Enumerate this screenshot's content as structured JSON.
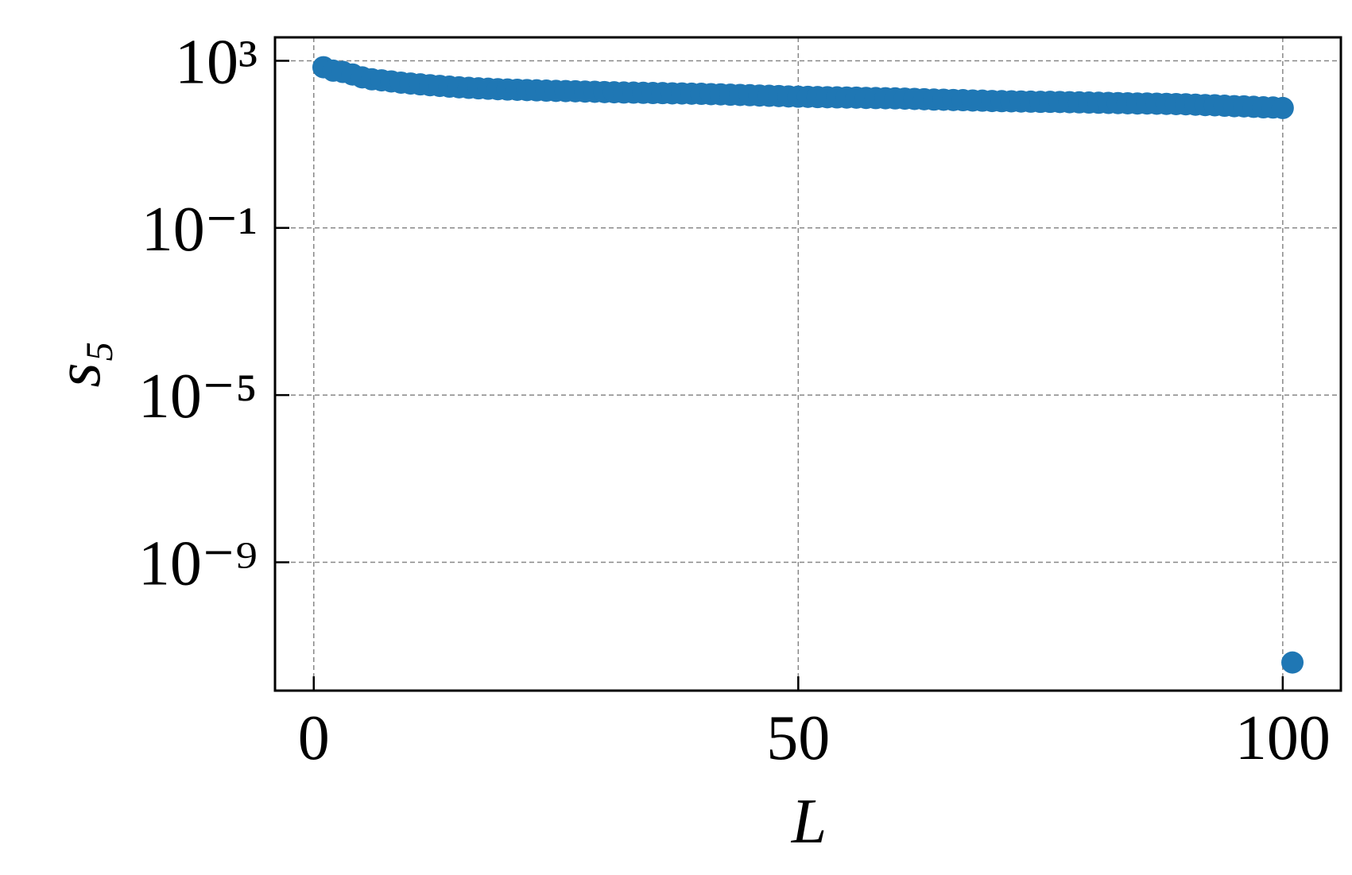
{
  "chart_data": {
    "type": "scatter",
    "x_label": "L",
    "y_label": "s₅",
    "x": [
      1,
      2,
      3,
      4,
      5,
      6,
      7,
      8,
      9,
      10,
      11,
      12,
      13,
      14,
      15,
      16,
      17,
      18,
      19,
      20,
      21,
      22,
      23,
      24,
      25,
      26,
      27,
      28,
      29,
      30,
      31,
      32,
      33,
      34,
      35,
      36,
      37,
      38,
      39,
      40,
      41,
      42,
      43,
      44,
      45,
      46,
      47,
      48,
      49,
      50,
      51,
      52,
      53,
      54,
      55,
      56,
      57,
      58,
      59,
      60,
      61,
      62,
      63,
      64,
      65,
      66,
      67,
      68,
      69,
      70,
      71,
      72,
      73,
      74,
      75,
      76,
      77,
      78,
      79,
      80,
      81,
      82,
      83,
      84,
      85,
      86,
      87,
      88,
      89,
      90,
      91,
      92,
      93,
      94,
      95,
      96,
      97,
      98,
      99,
      100,
      101
    ],
    "values": [
      700,
      580,
      540,
      470,
      400,
      360,
      340,
      320,
      300,
      285,
      272,
      260,
      250,
      240,
      232,
      225,
      219,
      214,
      209,
      205,
      202,
      199,
      196,
      193,
      190,
      188,
      186,
      183,
      181,
      178,
      176,
      174,
      173,
      171,
      169,
      168,
      166,
      165,
      163,
      162,
      159,
      157,
      154,
      152,
      150,
      147,
      145,
      143,
      140,
      138,
      137,
      135,
      134,
      133,
      132,
      131,
      129,
      128,
      127,
      126,
      124,
      122,
      120,
      118,
      117,
      115,
      114,
      112,
      111,
      109,
      108,
      107,
      106,
      105,
      104,
      104,
      103,
      102,
      101,
      100,
      99,
      98,
      97,
      96,
      95,
      95,
      94,
      93,
      92,
      91,
      89,
      87,
      86,
      84,
      82,
      81,
      79,
      77,
      76,
      74,
      4e-12
    ],
    "color": "#1f77b4",
    "xlim": [
      -4,
      106
    ],
    "xticks": [
      0,
      50,
      100
    ],
    "ylim": [
      8.5e-13,
      3630
    ],
    "log_y": true,
    "yticks": [
      {
        "value": 1000,
        "label": "10³"
      },
      {
        "value": 0.1,
        "label": "10⁻¹"
      },
      {
        "value": 1e-05,
        "label": "10⁻⁵"
      },
      {
        "value": 1e-09,
        "label": "10⁻⁹"
      }
    ],
    "grid": true
  }
}
